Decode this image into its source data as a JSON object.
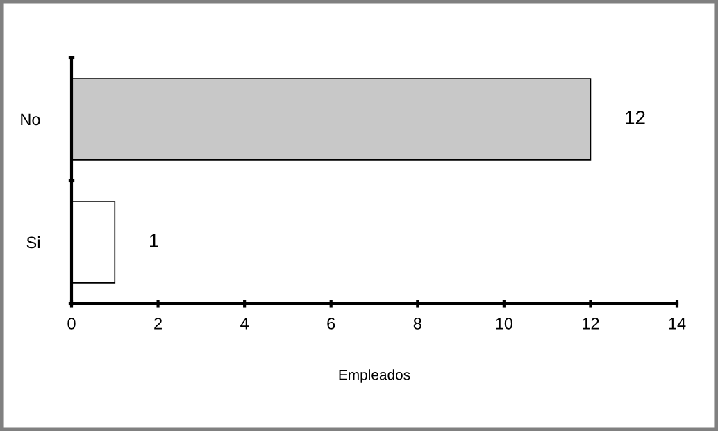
{
  "chart_data": {
    "type": "bar",
    "orientation": "horizontal",
    "xlabel": "Empleados",
    "categories": [
      "No",
      "Si"
    ],
    "values": [
      12,
      1
    ],
    "colors": [
      "#c8c8c8",
      "#ffffff"
    ],
    "xlim": [
      0,
      14
    ],
    "xticks": [
      0,
      2,
      4,
      6,
      8,
      10,
      12,
      14
    ],
    "data_labels": true,
    "grid": false,
    "legend": false
  }
}
